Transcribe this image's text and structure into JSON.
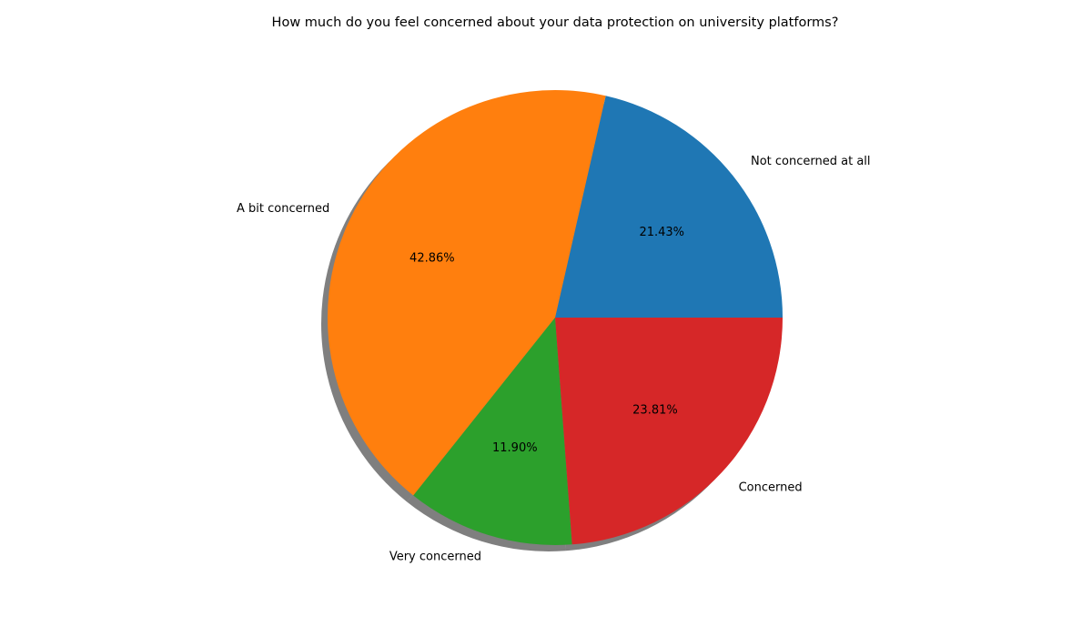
{
  "chart_data": {
    "type": "pie",
    "title": "How much do you feel concerned about your data protection on university platforms?",
    "categories": [
      "Not concerned at all",
      "A bit concerned",
      "Very concerned",
      "Concerned"
    ],
    "values": [
      21.43,
      42.86,
      11.9,
      23.81
    ],
    "value_labels": [
      "21.43%",
      "42.86%",
      "11.90%",
      "23.81%"
    ],
    "colors": [
      "#1f77b4",
      "#ff7f0e",
      "#2ca02c",
      "#d62728"
    ],
    "start_angle_deg": 0,
    "direction": "counterclockwise",
    "shadow": true,
    "legend": "none"
  }
}
